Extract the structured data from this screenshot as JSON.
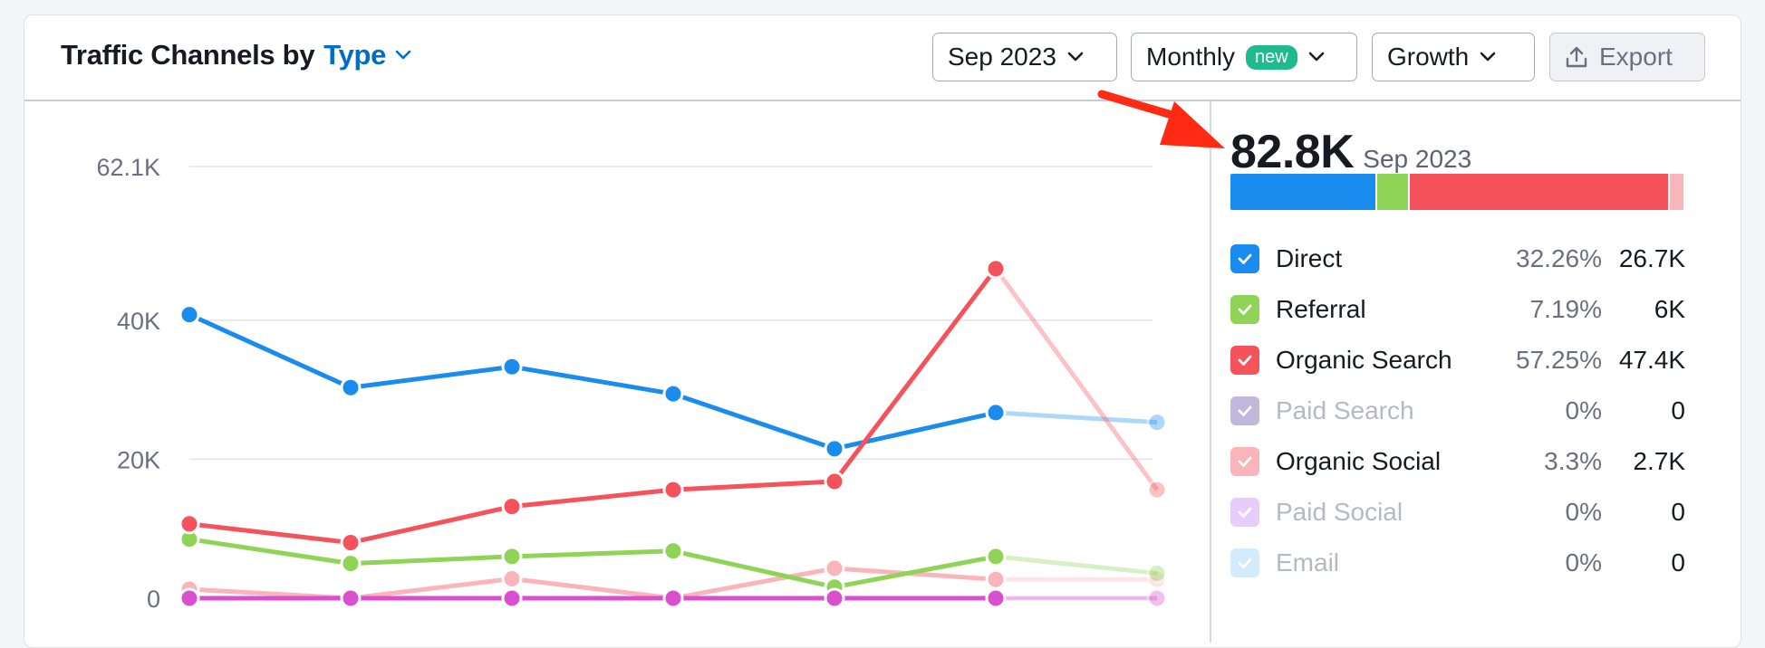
{
  "widget": {
    "title_prefix": "Traffic Channels by",
    "title_type": "Type",
    "controls": {
      "date": "Sep 2023",
      "period": "Monthly",
      "period_badge": "new",
      "metric": "Growth",
      "export": "Export"
    }
  },
  "summary": {
    "total": "82.8K",
    "date": "Sep 2023"
  },
  "colors": {
    "direct": "#1a8cf0",
    "referral": "#8fd457",
    "organic_search": "#f5525b",
    "paid_search": "#c1b8dc",
    "organic_social": "#f9b5b9",
    "paid_social": "#e6cdfc",
    "email": "#d2ebfd",
    "display": "#d94fd0",
    "arrow": "#ff2a12"
  },
  "legend": [
    {
      "key": "direct",
      "label": "Direct",
      "pct": "32.26%",
      "value": "26.7K",
      "share": 32.26,
      "muted": false
    },
    {
      "key": "referral",
      "label": "Referral",
      "pct": "7.19%",
      "value": "6K",
      "share": 7.19,
      "muted": false
    },
    {
      "key": "organic_search",
      "label": "Organic Search",
      "pct": "57.25%",
      "value": "47.4K",
      "share": 57.25,
      "muted": false
    },
    {
      "key": "paid_search",
      "label": "Paid Search",
      "pct": "0%",
      "value": "0",
      "share": 0,
      "muted": true
    },
    {
      "key": "organic_social",
      "label": "Organic Social",
      "pct": "3.3%",
      "value": "2.7K",
      "share": 3.3,
      "muted": false
    },
    {
      "key": "paid_social",
      "label": "Paid Social",
      "pct": "0%",
      "value": "0",
      "share": 0,
      "muted": true
    },
    {
      "key": "email",
      "label": "Email",
      "pct": "0%",
      "value": "0",
      "share": 0,
      "muted": true
    }
  ],
  "chart_data": {
    "type": "line",
    "ylim": [
      0,
      62100
    ],
    "y_ticks": [
      "0",
      "20K",
      "40K",
      "62.1K"
    ],
    "y_tick_values": [
      0,
      20000,
      40000,
      62100
    ],
    "points": 7,
    "series": [
      {
        "key": "organic_social",
        "values": [
          1300,
          0,
          2800,
          0,
          4300,
          2700,
          2700
        ],
        "incomplete_last": true
      },
      {
        "key": "referral",
        "values": [
          8500,
          5000,
          6000,
          6800,
          1600,
          6000,
          3600
        ],
        "incomplete_last": true
      },
      {
        "key": "display",
        "values": [
          0,
          0,
          0,
          0,
          0,
          0,
          0
        ],
        "incomplete_last": true
      },
      {
        "key": "direct",
        "values": [
          40800,
          30300,
          33300,
          29400,
          21500,
          26700,
          25300
        ],
        "incomplete_last": true
      },
      {
        "key": "organic_search",
        "values": [
          10700,
          8000,
          13200,
          15600,
          16800,
          47400,
          15600
        ],
        "incomplete_last": true
      }
    ]
  }
}
